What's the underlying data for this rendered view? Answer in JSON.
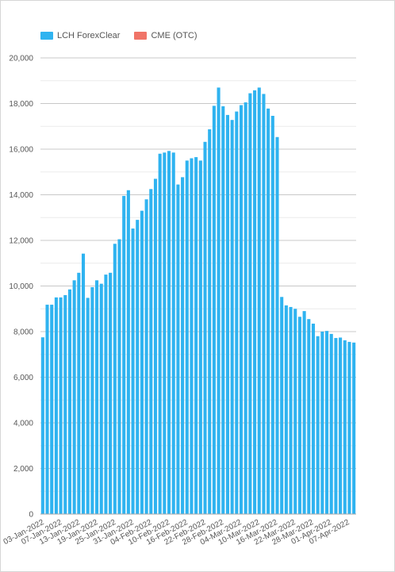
{
  "chart_data": {
    "type": "bar",
    "title": "",
    "xlabel": "",
    "ylabel": "",
    "ylim": [
      0,
      20000
    ],
    "yticks": [
      0,
      2000,
      4000,
      6000,
      8000,
      10000,
      12000,
      14000,
      16000,
      18000,
      20000
    ],
    "ytick_labels": [
      "0",
      "2,000",
      "4,000",
      "6,000",
      "8,000",
      "10,000",
      "12,000",
      "14,000",
      "16,000",
      "18,000",
      "20,000"
    ],
    "grid": true,
    "legend_position": "top-left",
    "x_tick_labels": [
      "03-Jan-2022",
      "07-Jan-2022",
      "13-Jan-2022",
      "19-Jan-2022",
      "25-Jan-2022",
      "31-Jan-2022",
      "04-Feb-2022",
      "10-Feb-2022",
      "16-Feb-2022",
      "22-Feb-2022",
      "28-Feb-2022",
      "04-Mar-2022",
      "10-Mar-2022",
      "16-Mar-2022",
      "22-Mar-2022",
      "28-Mar-2022",
      "01-Apr-2022",
      "07-Apr-2022"
    ],
    "series": [
      {
        "name": "LCH ForexClear",
        "color": "#2fb3f0",
        "values": [
          7750,
          9180,
          9180,
          9500,
          9500,
          9600,
          9850,
          10250,
          10580,
          11420,
          9480,
          9950,
          10250,
          10100,
          10500,
          10580,
          11850,
          12050,
          13950,
          14200,
          12520,
          12900,
          13300,
          13800,
          14250,
          14700,
          15800,
          15850,
          15920,
          15850,
          14450,
          14770,
          15500,
          15600,
          15650,
          15500,
          16320,
          16870,
          17900,
          18700,
          17880,
          17500,
          17280,
          17650,
          17930,
          18050,
          18450,
          18580,
          18700,
          18420,
          17780,
          17460,
          16530,
          9520,
          9150,
          9080,
          9000,
          8650,
          8900,
          8550,
          8350,
          7800,
          8000,
          8030,
          7900,
          7720,
          7740,
          7620,
          7550,
          7520
        ]
      },
      {
        "name": "CME (OTC)",
        "color": "#f07468",
        "values": []
      }
    ]
  }
}
